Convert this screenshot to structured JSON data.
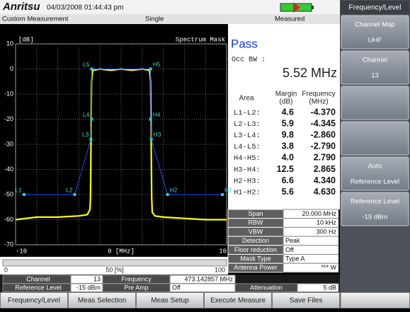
{
  "header": {
    "logo": "Anritsu",
    "datetime": "04/03/2008 01:44:43 pm"
  },
  "status": {
    "mode": "Custom Measurement",
    "sweep": "Single",
    "state": "Measured"
  },
  "chart_data": {
    "type": "line",
    "title": "Spectrum Mask",
    "y_label": "[dB]",
    "xlim": [
      -10,
      10
    ],
    "ylim": [
      -70,
      10
    ],
    "xticks": [
      -10,
      {
        "value": -8,
        "label": null
      },
      {
        "value": -6,
        "label": null
      },
      {
        "value": -4,
        "label": null
      },
      {
        "value": -2,
        "label": null
      },
      {
        "value": 0,
        "label": "0 [MHz]"
      },
      {
        "value": 2,
        "label": null
      },
      {
        "value": 4,
        "label": null
      },
      {
        "value": 6,
        "label": null
      },
      {
        "value": 8,
        "label": null
      },
      10
    ],
    "yticks": [
      10,
      0,
      -10,
      -20,
      -30,
      -40,
      -50,
      -60,
      -70
    ],
    "grid": true,
    "series": [
      {
        "color": "#ffff00",
        "x": [
          -10,
          -8,
          -6,
          -4,
          -3.2,
          -2.95,
          -2.9,
          -2.85,
          -2.8,
          -2.7,
          -2,
          -1,
          0,
          1,
          2,
          2.7,
          2.8,
          2.85,
          2.9,
          2.95,
          3.2,
          4,
          6,
          8,
          10
        ],
        "values": [
          -60,
          -59,
          -59,
          -58.5,
          -58,
          -56,
          -51,
          -30,
          -5,
          -0.5,
          0,
          -0.5,
          0,
          -0.5,
          0,
          -0.5,
          -5,
          -30,
          -51,
          -57,
          -58.5,
          -59,
          -59.5,
          -60,
          -60
        ]
      },
      {
        "color": "#2a4cff",
        "x": [
          -9.2,
          -4.4,
          -2.86,
          -2.79,
          -2.79,
          2.79,
          2.79,
          2.86,
          4.4,
          9.6
        ],
        "values": [
          -50,
          -50,
          -28,
          -20,
          0,
          0,
          -20,
          -28,
          -50,
          -50
        ],
        "point_labels": [
          "L1",
          "L2",
          "L3",
          "L4",
          "L5",
          "H5",
          "H4",
          "H3",
          "H2",
          "H1"
        ]
      }
    ]
  },
  "progress": {
    "labels": [
      "0",
      "50 [%]",
      "100"
    ]
  },
  "results": {
    "verdict": "Pass",
    "occ_bw_label": "Occ BW :",
    "occ_bw": "5.52 MHz",
    "columns": [
      [
        "Area"
      ],
      [
        "Margin",
        "(dB)"
      ],
      [
        "Frequency",
        "(MHz)"
      ]
    ],
    "rows": [
      [
        "L1-L2:",
        "4.6",
        "-4.370"
      ],
      [
        "L2-L3:",
        "5.9",
        "-4.345"
      ],
      [
        "L3-L4:",
        "9.8",
        "-2.860"
      ],
      [
        "L4-L5:",
        "3.8",
        "-2.790"
      ],
      [
        "H4-H5:",
        "4.0",
        "2.790"
      ],
      [
        "H3-H4:",
        "12.5",
        "2.865"
      ],
      [
        "H2-H3:",
        "6.6",
        "4.340"
      ],
      [
        "H1-H2:",
        "5.6",
        "4.630"
      ]
    ]
  },
  "settings": [
    [
      "Span",
      "20.000 MHz"
    ],
    [
      "RBW",
      "10 kHz"
    ],
    [
      "VBW",
      "300 Hz"
    ],
    [
      "Detection",
      "Peak"
    ],
    [
      "Floor reduction",
      "Off"
    ],
    [
      "Mask Type",
      "Type A"
    ],
    [
      "Antenna Power",
      "*** W"
    ]
  ],
  "footer": {
    "rows": [
      [
        "Channel",
        "13",
        "Frequency",
        "473.142857 MHz"
      ],
      [
        "Reference Level",
        "-15 dBm",
        "Pre Amp",
        "Off",
        "Attenuation",
        "5 dB"
      ]
    ]
  },
  "softkeys": {
    "title": "Frequency/Level",
    "keys": [
      [
        "Channel Map",
        "UHF"
      ],
      [
        "Channel",
        "13"
      ],
      [
        "Auto",
        "Reference Level"
      ],
      [
        "Reference Level",
        "-15 dBm"
      ]
    ]
  },
  "tabs": [
    "Frequency/Level",
    "Meas Selection",
    "Meas Setup",
    "Execute Measure",
    "Save Files"
  ]
}
